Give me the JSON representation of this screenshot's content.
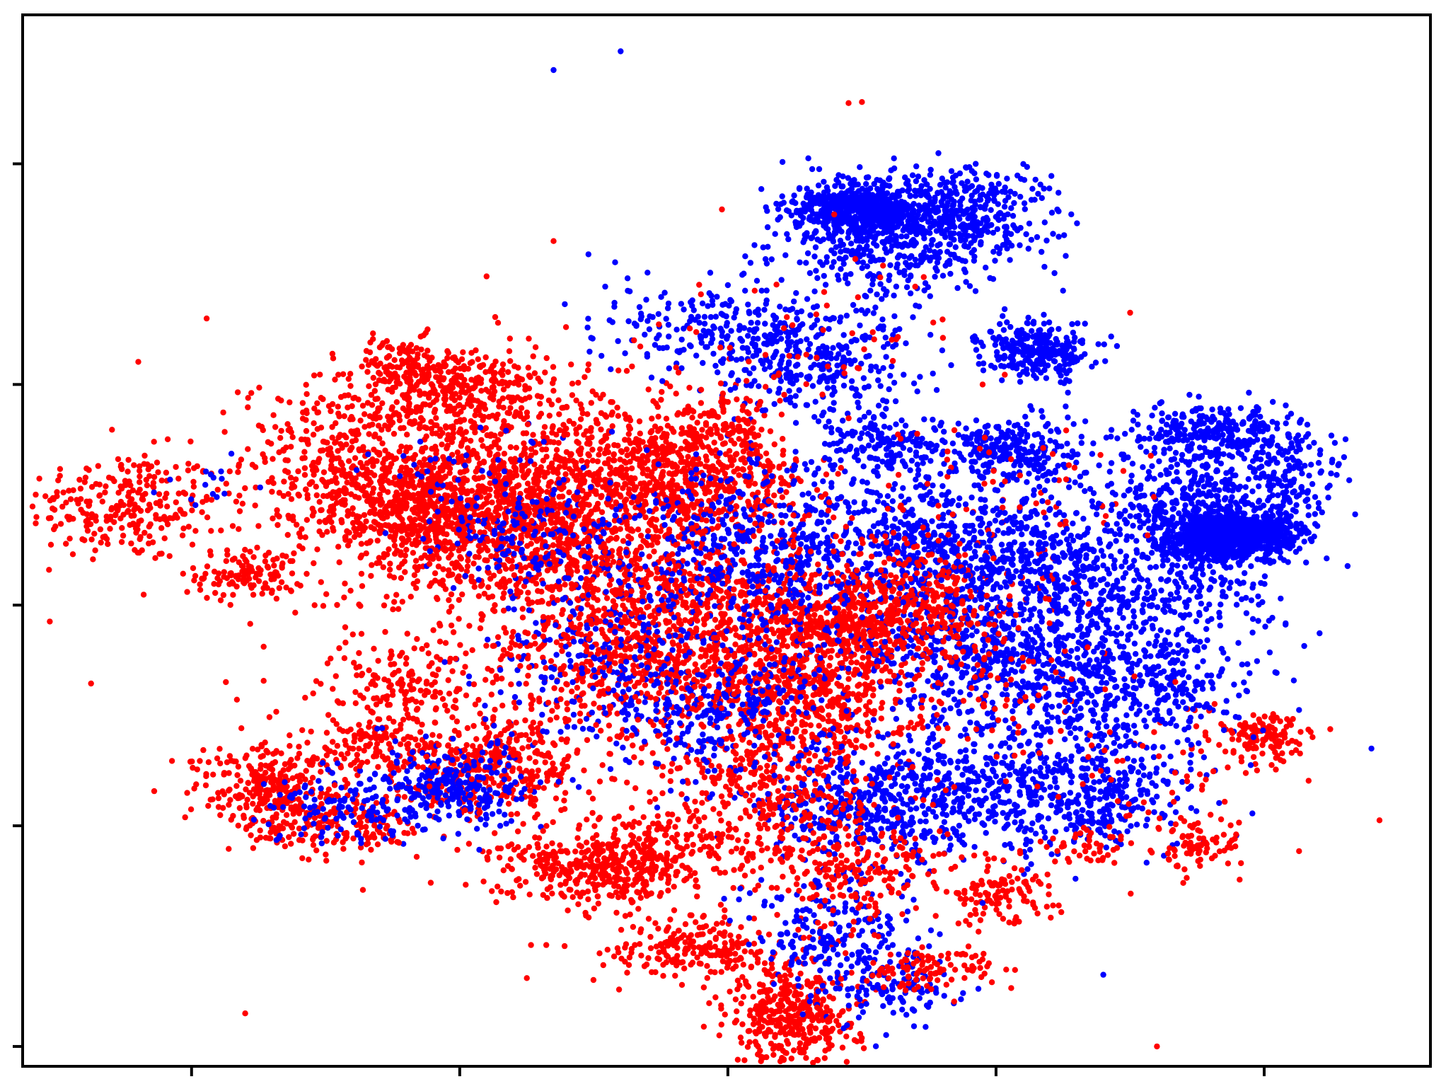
{
  "chart_data": {
    "type": "scatter",
    "title": "",
    "xlabel": "",
    "ylabel": "",
    "xlim": [
      -6.3,
      46.2
    ],
    "ylim": [
      -41.8,
      53.5
    ],
    "x_ticks": [
      0,
      10,
      20,
      30,
      40
    ],
    "y_ticks": [
      -40,
      -20,
      0,
      20,
      40
    ],
    "tick_labels_shown": false,
    "grid": false,
    "legend": "none",
    "series": [
      {
        "color": "#ff0000",
        "point_count_estimate": 9000,
        "clusters": [
          {
            "cx": -2.5,
            "cy": 9.0,
            "sx": 1.8,
            "sy": 2.5,
            "n": 260
          },
          {
            "cx": 2.2,
            "cy": 2.8,
            "sx": 1.0,
            "sy": 1.2,
            "n": 120
          },
          {
            "cx": 5.5,
            "cy": 13.5,
            "sx": 1.8,
            "sy": 3.5,
            "n": 320
          },
          {
            "cx": 7.8,
            "cy": 21.5,
            "sx": 1.0,
            "sy": 1.3,
            "n": 130
          },
          {
            "cx": 8.0,
            "cy": 8.5,
            "sx": 1.8,
            "sy": 2.2,
            "n": 320
          },
          {
            "cx": 10.2,
            "cy": 11.0,
            "sx": 2.2,
            "sy": 3.8,
            "n": 680
          },
          {
            "cx": 10.5,
            "cy": 19.5,
            "sx": 1.5,
            "sy": 2.0,
            "n": 260
          },
          {
            "cx": 13.0,
            "cy": 6.0,
            "sx": 2.5,
            "sy": 3.5,
            "n": 420
          },
          {
            "cx": 15.5,
            "cy": 11.0,
            "sx": 2.5,
            "sy": 4.0,
            "n": 420
          },
          {
            "cx": 17.2,
            "cy": 14.5,
            "sx": 0.4,
            "sy": 0.6,
            "n": 30
          },
          {
            "cx": 19.0,
            "cy": 11.0,
            "sx": 2.0,
            "sy": 2.5,
            "n": 420
          },
          {
            "cx": 18.5,
            "cy": 1.0,
            "sx": 2.5,
            "sy": 3.0,
            "n": 300
          },
          {
            "cx": 16.0,
            "cy": -5.5,
            "sx": 2.0,
            "sy": 2.5,
            "n": 260
          },
          {
            "cx": 20.5,
            "cy": -4.5,
            "sx": 2.5,
            "sy": 4.0,
            "n": 360
          },
          {
            "cx": 23.0,
            "cy": -8.0,
            "sx": 2.0,
            "sy": 3.5,
            "n": 460
          },
          {
            "cx": 25.0,
            "cy": -1.0,
            "sx": 1.8,
            "sy": 2.5,
            "n": 380
          },
          {
            "cx": 27.5,
            "cy": 1.0,
            "sx": 1.5,
            "sy": 2.0,
            "n": 140
          },
          {
            "cx": 7.8,
            "cy": -7.0,
            "sx": 1.3,
            "sy": 1.5,
            "n": 120
          },
          {
            "cx": 7.0,
            "cy": -12.5,
            "sx": 1.2,
            "sy": 1.5,
            "n": 120
          },
          {
            "cx": 3.0,
            "cy": -16.5,
            "sx": 1.5,
            "sy": 2.0,
            "n": 280
          },
          {
            "cx": 5.5,
            "cy": -20.0,
            "sx": 1.5,
            "sy": 1.5,
            "n": 160
          },
          {
            "cx": 10.5,
            "cy": -16.0,
            "sx": 1.5,
            "sy": 1.8,
            "n": 140
          },
          {
            "cx": 12.0,
            "cy": -14.0,
            "sx": 1.5,
            "sy": 2.0,
            "n": 180
          },
          {
            "cx": 15.0,
            "cy": -24.0,
            "sx": 1.8,
            "sy": 1.5,
            "n": 340
          },
          {
            "cx": 17.5,
            "cy": -22.0,
            "sx": 1.5,
            "sy": 2.0,
            "n": 180
          },
          {
            "cx": 18.8,
            "cy": -31.0,
            "sx": 1.5,
            "sy": 1.5,
            "n": 200
          },
          {
            "cx": 22.5,
            "cy": -37.0,
            "sx": 1.2,
            "sy": 2.5,
            "n": 400
          },
          {
            "cx": 22.0,
            "cy": -17.0,
            "sx": 2.0,
            "sy": 3.0,
            "n": 280
          },
          {
            "cx": 24.5,
            "cy": -24.0,
            "sx": 1.8,
            "sy": 2.5,
            "n": 200
          },
          {
            "cx": 27.5,
            "cy": -33.0,
            "sx": 1.2,
            "sy": 1.0,
            "n": 100
          },
          {
            "cx": 30.0,
            "cy": -26.0,
            "sx": 1.2,
            "sy": 1.5,
            "n": 120
          },
          {
            "cx": 33.5,
            "cy": -22.0,
            "sx": 0.8,
            "sy": 1.0,
            "n": 40
          },
          {
            "cx": 37.5,
            "cy": -22.0,
            "sx": 0.8,
            "sy": 1.3,
            "n": 80
          },
          {
            "cx": 40.0,
            "cy": -12.0,
            "sx": 0.8,
            "sy": 1.0,
            "n": 120
          },
          {
            "cx": 20.0,
            "cy": 16.0,
            "sx": 1.0,
            "sy": 1.2,
            "n": 90
          },
          {
            "cx": 29.0,
            "cy": -7.0,
            "sx": 2.5,
            "sy": 4.0,
            "n": 120
          },
          {
            "cx": 30.0,
            "cy": 10.0,
            "sx": 3.0,
            "sy": 4.0,
            "n": 80
          },
          {
            "cx": 36.0,
            "cy": -14.0,
            "sx": 3.0,
            "sy": 4.0,
            "n": 70
          },
          {
            "cx": 24.0,
            "cy": 26.0,
            "sx": 2.5,
            "sy": 3.0,
            "n": 40
          },
          {
            "cx": 15.0,
            "cy": 0.0,
            "sx": 6.0,
            "sy": 11.0,
            "n": 850
          }
        ],
        "outliers": [
          [
            44.3,
            -19.5
          ],
          [
            41.3,
            -22.3
          ],
          [
            35.0,
            26.5
          ],
          [
            21.0,
            28.5
          ],
          [
            2.0,
            -37.0
          ],
          [
            36.0,
            -40.0
          ],
          [
            38.0,
            -19.0
          ],
          [
            13.5,
            33.0
          ],
          [
            29.5,
            20.0
          ],
          [
            24.5,
            45.5
          ],
          [
            25.0,
            45.6
          ],
          [
            11.0,
            29.8
          ],
          [
            16.5,
            24.0
          ],
          [
            22.2,
            -39.5
          ]
        ]
      },
      {
        "color": "#0000ff",
        "point_count_estimate": 9500,
        "clusters": [
          {
            "cx": 25.0,
            "cy": 36.0,
            "sx": 1.2,
            "sy": 1.2,
            "n": 550
          },
          {
            "cx": 26.5,
            "cy": 33.0,
            "sx": 2.3,
            "sy": 2.5,
            "n": 450
          },
          {
            "cx": 29.0,
            "cy": 36.0,
            "sx": 1.5,
            "sy": 1.8,
            "n": 250
          },
          {
            "cx": 31.5,
            "cy": 23.0,
            "sx": 1.0,
            "sy": 1.2,
            "n": 280
          },
          {
            "cx": 30.5,
            "cy": 14.0,
            "sx": 1.3,
            "sy": 1.5,
            "n": 250
          },
          {
            "cx": 38.5,
            "cy": 6.0,
            "sx": 1.0,
            "sy": 1.0,
            "n": 550
          },
          {
            "cx": 39.5,
            "cy": 6.5,
            "sx": 1.0,
            "sy": 1.0,
            "n": 400
          },
          {
            "cx": 37.5,
            "cy": 8.0,
            "sx": 1.8,
            "sy": 3.0,
            "n": 450
          },
          {
            "cx": 38.0,
            "cy": 15.5,
            "sx": 1.5,
            "sy": 1.5,
            "n": 280
          },
          {
            "cx": 41.0,
            "cy": 12.0,
            "sx": 1.0,
            "sy": 2.5,
            "n": 150
          },
          {
            "cx": 26.0,
            "cy": 14.5,
            "sx": 1.5,
            "sy": 1.5,
            "n": 180
          },
          {
            "cx": 27.5,
            "cy": 6.0,
            "sx": 2.5,
            "sy": 3.0,
            "n": 400
          },
          {
            "cx": 28.5,
            "cy": -2.0,
            "sx": 3.0,
            "sy": 4.0,
            "n": 550
          },
          {
            "cx": 32.5,
            "cy": -5.5,
            "sx": 3.0,
            "sy": 4.0,
            "n": 550
          },
          {
            "cx": 23.0,
            "cy": 22.0,
            "sx": 2.0,
            "sy": 2.5,
            "n": 300
          },
          {
            "cx": 20.0,
            "cy": 25.5,
            "sx": 2.5,
            "sy": 2.0,
            "n": 200
          },
          {
            "cx": 21.0,
            "cy": 5.0,
            "sx": 2.5,
            "sy": 4.0,
            "n": 500
          },
          {
            "cx": 25.0,
            "cy": -18.0,
            "sx": 2.0,
            "sy": 2.5,
            "n": 350
          },
          {
            "cx": 29.0,
            "cy": -17.0,
            "sx": 2.5,
            "sy": 3.0,
            "n": 350
          },
          {
            "cx": 33.5,
            "cy": -17.0,
            "sx": 2.0,
            "sy": 2.5,
            "n": 300
          },
          {
            "cx": 24.0,
            "cy": -30.0,
            "sx": 1.5,
            "sy": 3.5,
            "n": 250
          },
          {
            "cx": 26.5,
            "cy": -35.0,
            "sx": 1.0,
            "sy": 1.5,
            "n": 80
          },
          {
            "cx": 9.5,
            "cy": -16.5,
            "sx": 1.5,
            "sy": 2.0,
            "n": 280
          },
          {
            "cx": 5.5,
            "cy": -18.5,
            "sx": 1.5,
            "sy": 1.5,
            "n": 100
          },
          {
            "cx": 13.5,
            "cy": 5.0,
            "sx": 2.0,
            "sy": 3.0,
            "n": 160
          },
          {
            "cx": 15.5,
            "cy": -6.0,
            "sx": 2.5,
            "sy": 3.5,
            "n": 220
          },
          {
            "cx": 19.5,
            "cy": -10.0,
            "sx": 2.0,
            "sy": 3.0,
            "n": 250
          },
          {
            "cx": 35.5,
            "cy": -8.0,
            "sx": 2.0,
            "sy": 3.0,
            "n": 200
          },
          {
            "cx": 36.5,
            "cy": 0.5,
            "sx": 2.0,
            "sy": 2.0,
            "n": 150
          },
          {
            "cx": 32.0,
            "cy": 5.0,
            "sx": 2.5,
            "sy": 3.0,
            "n": 300
          },
          {
            "cx": 0.5,
            "cy": 10.0,
            "sx": 0.8,
            "sy": 1.5,
            "n": 15
          },
          {
            "cx": 10.5,
            "cy": 11.0,
            "sx": 2.0,
            "sy": 3.0,
            "n": 60
          }
        ],
        "outliers": [
          [
            13.5,
            48.5
          ],
          [
            16.0,
            50.2
          ],
          [
            27.0,
            30.8
          ],
          [
            23.0,
            40.5
          ],
          [
            32.5,
            28.5
          ],
          [
            39.5,
            -14.5
          ],
          [
            34.0,
            -33.5
          ],
          [
            41.3,
            -9.5
          ],
          [
            44.0,
            -13.0
          ],
          [
            14.8,
            31.8
          ],
          [
            29.5,
            -27.0
          ],
          [
            20.0,
            29.0
          ],
          [
            36.0,
            -9.5
          ]
        ]
      }
    ]
  }
}
